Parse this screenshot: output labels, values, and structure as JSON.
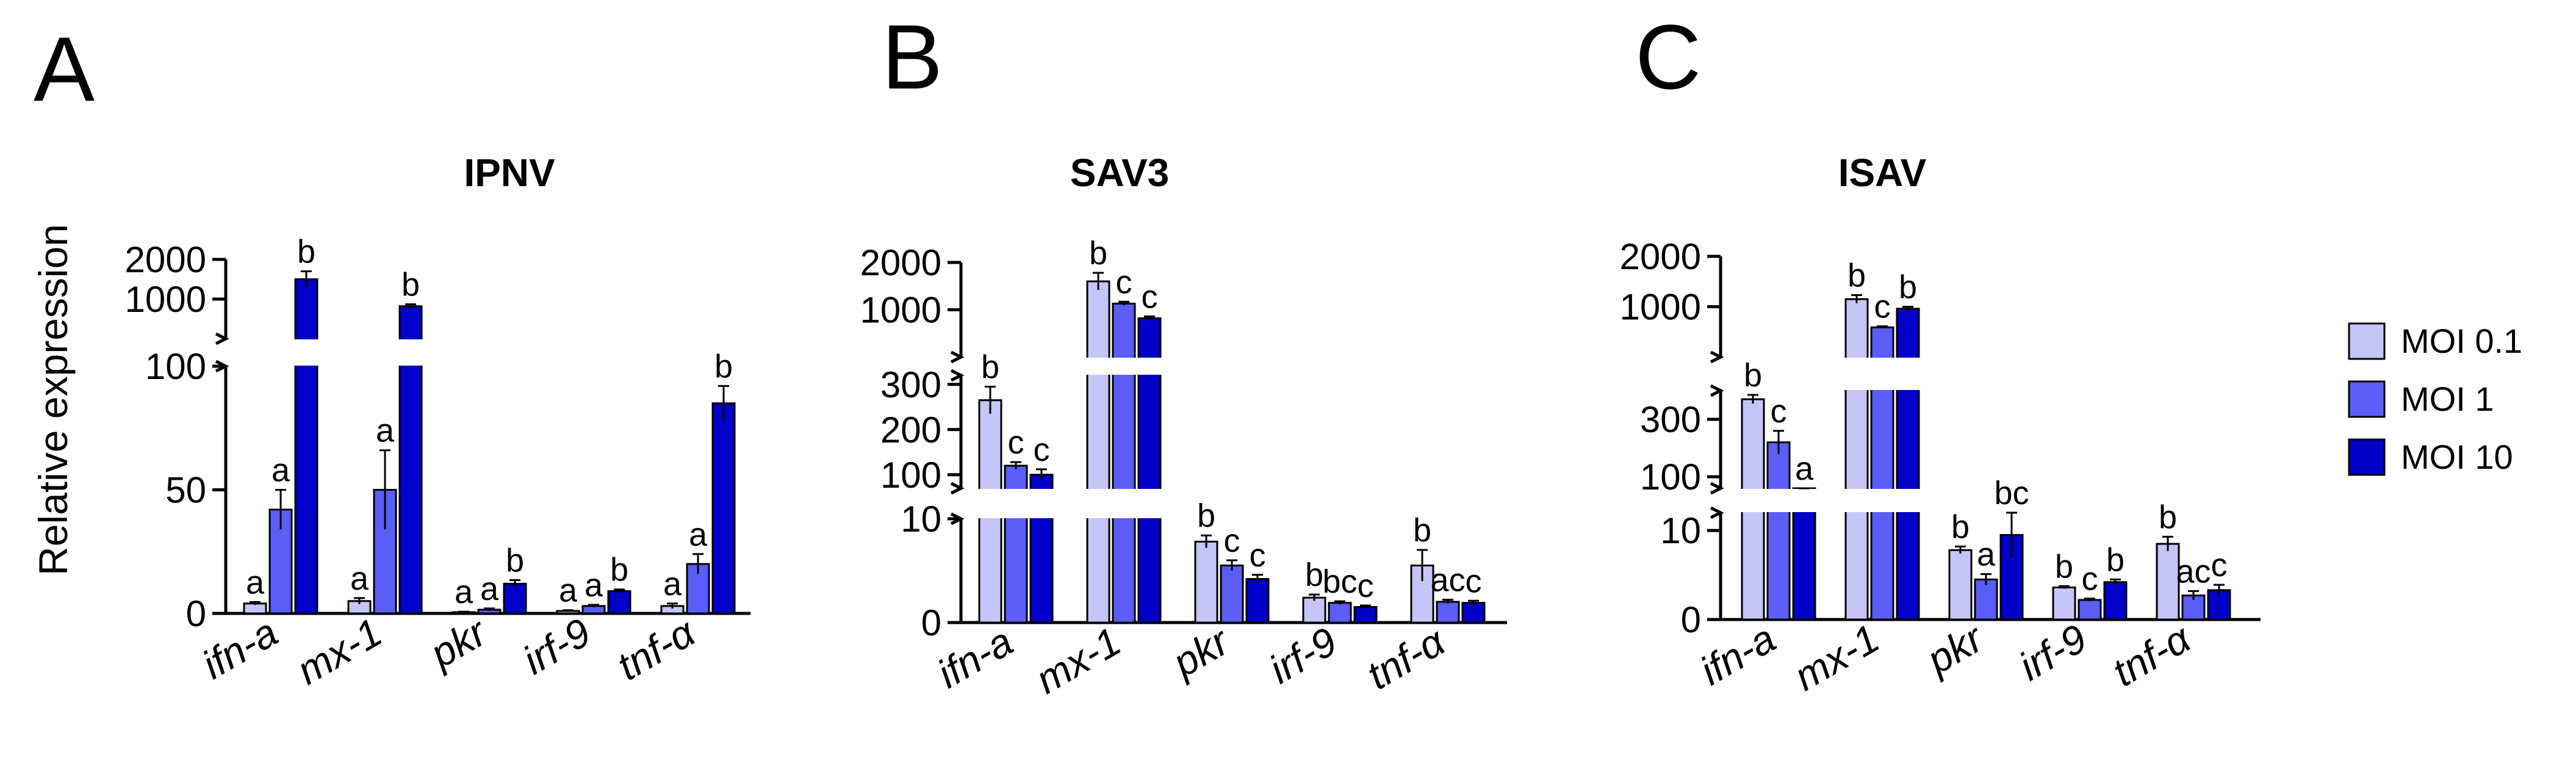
{
  "legend": [
    {
      "name": "MOI 0.1",
      "color": "#c5c5f7"
    },
    {
      "name": "MOI 1",
      "color": "#5a5ef6"
    },
    {
      "name": "MOI 10",
      "color": "#0000c8"
    }
  ],
  "chart_data": [
    {
      "type": "bar",
      "panel": "A",
      "title": "IPNV",
      "ylabel": "Relative expression",
      "categories": [
        "ifn-a",
        "mx-1",
        "pkr",
        "irf-9",
        "tnf-α"
      ],
      "y_ticks": [
        "0",
        "50",
        "100",
        "1000",
        "2000"
      ],
      "series": [
        {
          "name": "MOI 0.1",
          "values": [
            4,
            5,
            0.5,
            1,
            3
          ],
          "errors": [
            0.6,
            1.2,
            0.2,
            0.3,
            1.0
          ],
          "letters": [
            "a",
            "a",
            "a",
            "a",
            "a"
          ]
        },
        {
          "name": "MOI 1",
          "values": [
            42,
            50,
            1.5,
            3,
            20
          ],
          "errors": [
            8,
            16,
            0.5,
            0.5,
            4
          ],
          "letters": [
            "a",
            "a",
            "a",
            "a",
            "a"
          ]
        },
        {
          "name": "MOI 10",
          "values": [
            1500,
            820,
            12,
            9,
            85
          ],
          "errors": [
            200,
            50,
            1.5,
            0.7,
            7
          ],
          "letters": [
            "b",
            "b",
            "b",
            "b",
            "b"
          ]
        }
      ]
    },
    {
      "type": "bar",
      "panel": "B",
      "title": "SAV3",
      "ylabel": "",
      "categories": [
        "ifn-a",
        "mx-1",
        "pkr",
        "irf-9",
        "tnf-α"
      ],
      "y_ticks": [
        "0",
        "10",
        "100",
        "200",
        "300",
        "1000",
        "2000"
      ],
      "series": [
        {
          "name": "MOI 0.1",
          "values": [
            265,
            1600,
            7.8,
            2.4,
            5.5
          ],
          "errors": [
            30,
            180,
            0.6,
            0.3,
            1.5
          ],
          "letters": [
            "b",
            "b",
            "b",
            "b",
            "b"
          ]
        },
        {
          "name": "MOI 1",
          "values": [
            120,
            1130,
            5.5,
            1.9,
            2.0
          ],
          "errors": [
            8,
            40,
            0.5,
            0.15,
            0.2
          ],
          "letters": [
            "c",
            "c",
            "c",
            "bc",
            "ac"
          ]
        },
        {
          "name": "MOI 10",
          "values": [
            100,
            820,
            4.2,
            1.5,
            1.9
          ],
          "errors": [
            12,
            40,
            0.4,
            0.15,
            0.2
          ],
          "letters": [
            "c",
            "c",
            "c",
            "c",
            "c"
          ]
        }
      ]
    },
    {
      "type": "bar",
      "panel": "C",
      "title": "ISAV",
      "ylabel": "",
      "categories": [
        "ifn-a",
        "mx-1",
        "pkr",
        "irf-9",
        "tnf-α"
      ],
      "y_ticks": [
        "0",
        "10",
        "100",
        "300",
        "1000",
        "2000"
      ],
      "series": [
        {
          "name": "MOI 0.1",
          "values": [
            370,
            1150,
            7.8,
            3.6,
            8.5
          ],
          "errors": [
            15,
            80,
            0.4,
            0.15,
            0.8
          ],
          "letters": [
            "b",
            "b",
            "b",
            "b",
            "b"
          ]
        },
        {
          "name": "MOI 1",
          "values": [
            220,
            590,
            4.5,
            2.2,
            2.7
          ],
          "errors": [
            40,
            20,
            0.6,
            0.15,
            0.5
          ],
          "letters": [
            "c",
            "c",
            "a",
            "c",
            "ac"
          ]
        },
        {
          "name": "MOI 10",
          "values": [
            55,
            960,
            9.5,
            4.2,
            3.3
          ],
          "errors": [
            5,
            40,
            2.5,
            0.3,
            0.6
          ],
          "letters": [
            "a",
            "b",
            "bc",
            "b",
            "c"
          ]
        }
      ]
    }
  ]
}
